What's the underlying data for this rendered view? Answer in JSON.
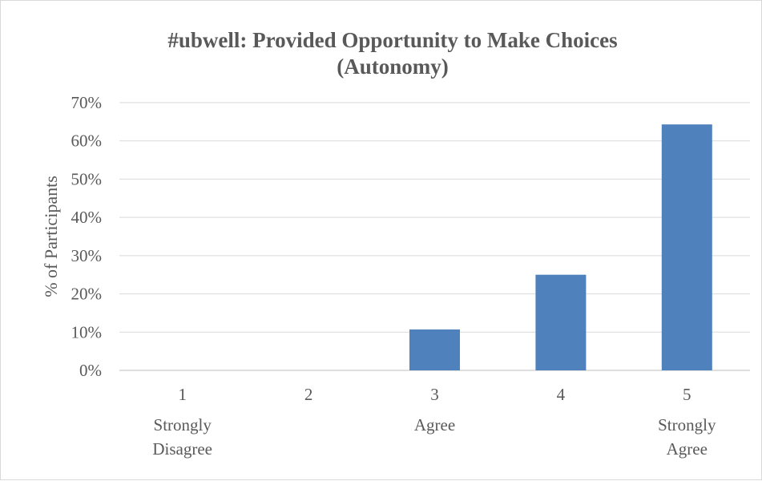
{
  "chart_data": {
    "type": "bar",
    "title": [
      "#ubwell:  Provided Opportunity to Make Choices",
      "(Autonomy)"
    ],
    "xlabel": "",
    "ylabel": "% of Participants",
    "categories": [
      "1",
      "2",
      "3",
      "4",
      "5"
    ],
    "category_sublabels": [
      [
        "Strongly",
        "Disagree"
      ],
      [],
      [
        "Agree"
      ],
      [],
      [
        "Strongly",
        "Agree"
      ]
    ],
    "values": [
      0,
      0,
      10.7,
      25.0,
      64.3
    ],
    "ylim": [
      0,
      70
    ],
    "yticks": [
      "0%",
      "10%",
      "20%",
      "30%",
      "40%",
      "50%",
      "60%",
      "70%"
    ],
    "grid": true,
    "legend": "none",
    "bar_color": "#4f81bd"
  }
}
